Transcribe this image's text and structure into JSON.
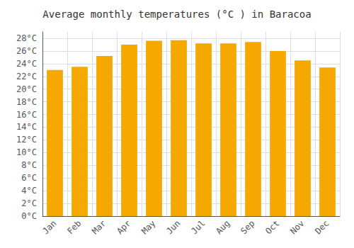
{
  "chart_data": {
    "type": "bar",
    "title": "Average monthly temperatures (°C ) in Baracoa",
    "categories": [
      "Jan",
      "Feb",
      "Mar",
      "Apr",
      "May",
      "Jun",
      "Jul",
      "Aug",
      "Sep",
      "Oct",
      "Nov",
      "Dec"
    ],
    "values": [
      23.0,
      23.5,
      25.2,
      27.0,
      27.6,
      27.7,
      27.2,
      27.2,
      27.4,
      26.0,
      24.5,
      23.4
    ],
    "color": "#F5A800",
    "ylim": [
      0,
      29
    ],
    "yticks": [
      {
        "value": 0,
        "label": "0°C"
      },
      {
        "value": 2,
        "label": "2°C"
      },
      {
        "value": 4,
        "label": "4°C"
      },
      {
        "value": 6,
        "label": "6°C"
      },
      {
        "value": 8,
        "label": "8°C"
      },
      {
        "value": 10,
        "label": "10°C"
      },
      {
        "value": 12,
        "label": "12°C"
      },
      {
        "value": 14,
        "label": "14°C"
      },
      {
        "value": 16,
        "label": "16°C"
      },
      {
        "value": 18,
        "label": "18°C"
      },
      {
        "value": 20,
        "label": "20°C"
      },
      {
        "value": 22,
        "label": "22°C"
      },
      {
        "value": 24,
        "label": "24°C"
      },
      {
        "value": 26,
        "label": "26°C"
      },
      {
        "value": 28,
        "label": "28°C"
      }
    ],
    "grid": true
  }
}
